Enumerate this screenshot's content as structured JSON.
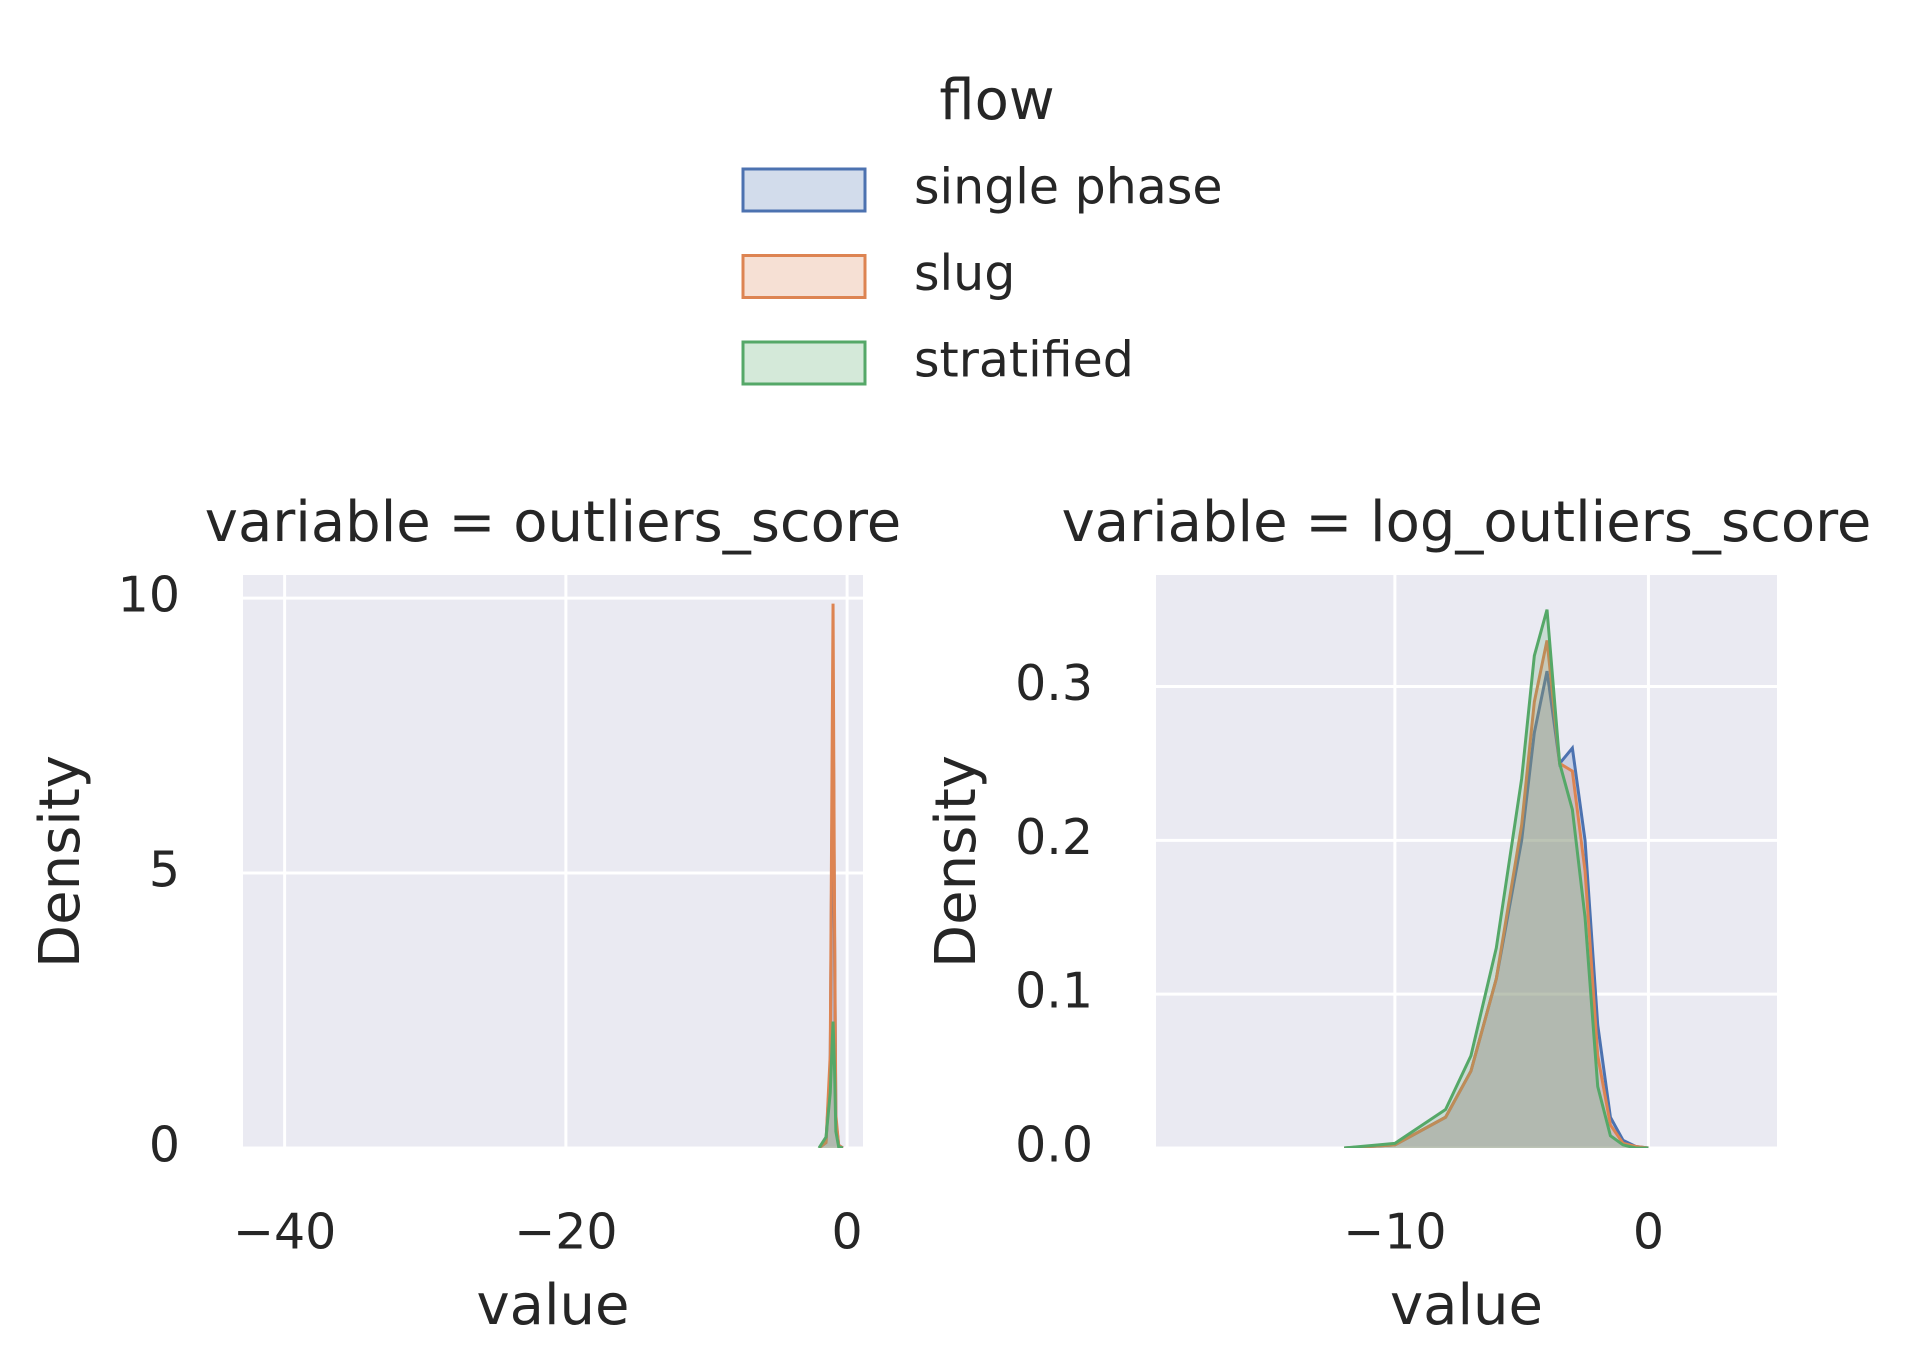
{
  "chart_data": [
    {
      "type": "area",
      "title": "variable = outliers_score",
      "xlabel": "value",
      "ylabel": "Density",
      "legend_title": "flow",
      "x": [
        -2,
        -1.5,
        -1.2,
        -1.0,
        -0.9,
        -0.8,
        -0.6,
        -0.3
      ],
      "series": [
        {
          "name": "single phase",
          "color": "#4c72b0",
          "values": [
            0,
            0.1,
            1.5,
            8.5,
            4,
            0.5,
            0.05,
            0
          ]
        },
        {
          "name": "slug",
          "color": "#dd8452",
          "values": [
            0,
            0.1,
            1.7,
            9.9,
            4.5,
            0.6,
            0.05,
            0
          ]
        },
        {
          "name": "stratified",
          "color": "#55a868",
          "values": [
            0,
            0.2,
            1.0,
            2.3,
            1.5,
            0.3,
            0.02,
            0
          ]
        }
      ],
      "xlim": [
        -42.96,
        1.13
      ],
      "ylim": [
        0,
        10.42
      ],
      "xticks": [
        {
          "value": -40,
          "label": "−40"
        },
        {
          "value": -20,
          "label": "−20"
        },
        0
      ],
      "yticks": [
        0,
        5,
        10
      ],
      "grid": true
    },
    {
      "type": "area",
      "title": "variable = log_outliers_score",
      "xlabel": "value",
      "ylabel": "Density",
      "x": [
        -12,
        -10,
        -8,
        -7,
        -6,
        -5,
        -4.5,
        -4,
        -3.5,
        -3,
        -2.5,
        -2,
        -1.5,
        -1,
        -0.5,
        0
      ],
      "series": [
        {
          "name": "single phase",
          "color": "#4c72b0",
          "values": [
            0,
            0.002,
            0.02,
            0.05,
            0.11,
            0.2,
            0.27,
            0.31,
            0.25,
            0.26,
            0.2,
            0.08,
            0.02,
            0.005,
            0.001,
            0
          ]
        },
        {
          "name": "slug",
          "color": "#dd8452",
          "values": [
            0,
            0.002,
            0.02,
            0.05,
            0.11,
            0.21,
            0.29,
            0.33,
            0.25,
            0.245,
            0.18,
            0.06,
            0.015,
            0.003,
            0.001,
            0
          ]
        },
        {
          "name": "stratified",
          "color": "#55a868",
          "values": [
            0,
            0.003,
            0.025,
            0.06,
            0.13,
            0.24,
            0.32,
            0.35,
            0.25,
            0.22,
            0.15,
            0.04,
            0.008,
            0.002,
            0,
            0
          ]
        }
      ],
      "xlim": [
        -19.42,
        5.07
      ],
      "ylim": [
        0,
        0.3725
      ],
      "xticks": [
        {
          "value": -10,
          "label": "−10"
        },
        0
      ],
      "yticks": [
        {
          "value": 0,
          "label": "0.0"
        },
        0.1,
        0.2,
        0.3
      ],
      "grid": true
    }
  ]
}
